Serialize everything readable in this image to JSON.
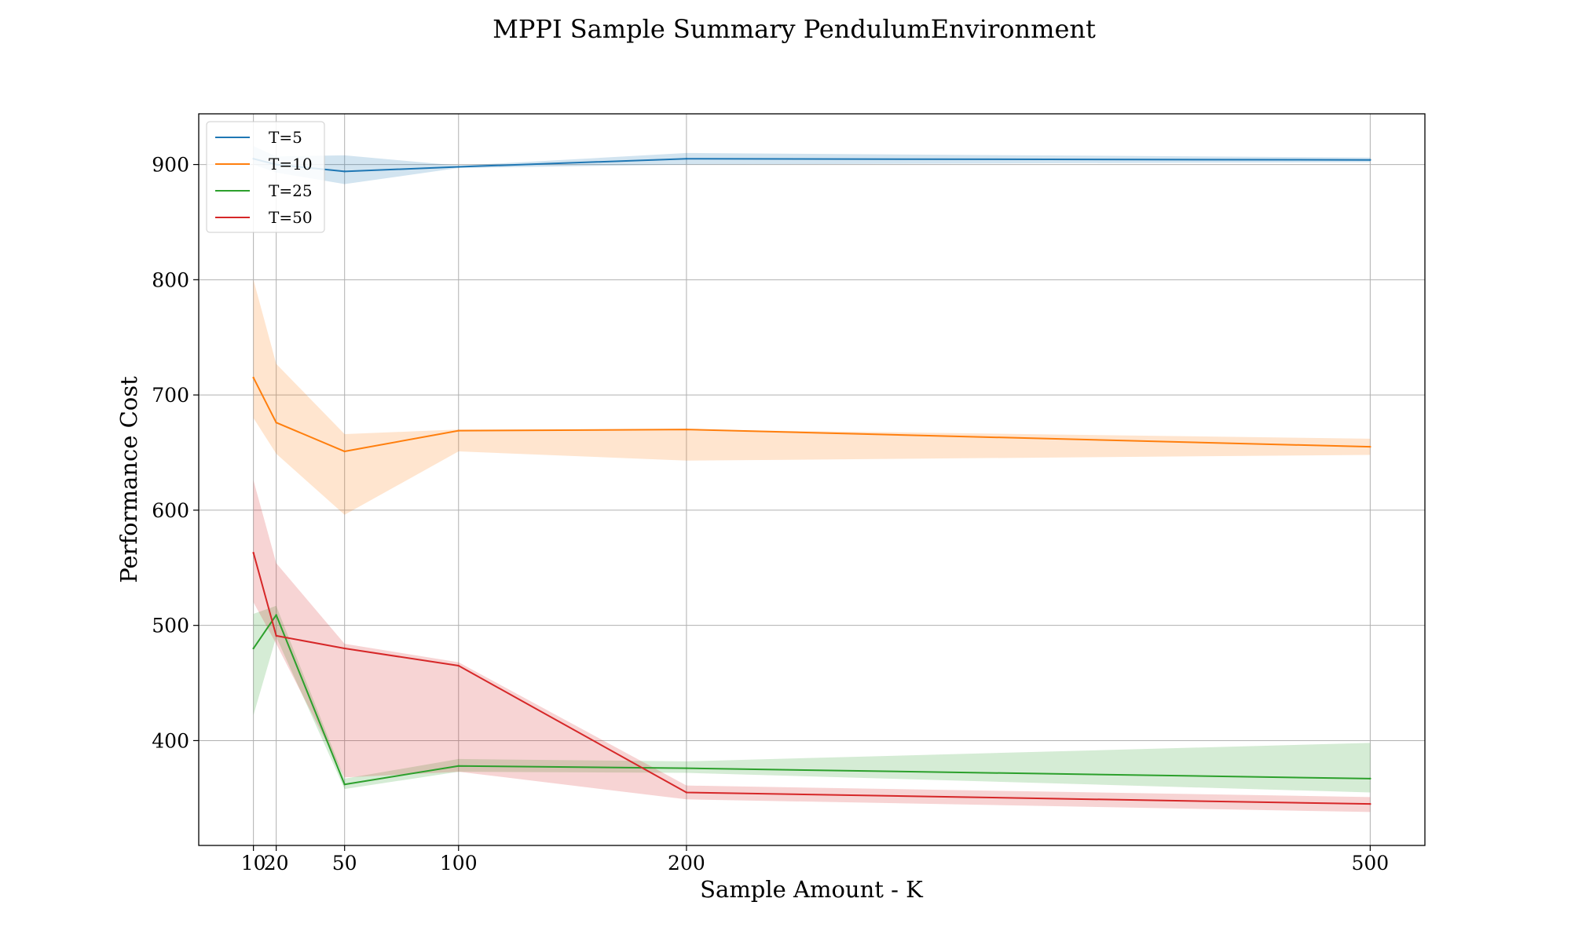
{
  "chart_data": {
    "type": "line",
    "title": "MPPI Sample Summary PendulumEnvironment",
    "xlabel": "Sample Amount - K",
    "ylabel": "Performance Cost",
    "x": [
      10,
      20,
      50,
      100,
      200,
      500
    ],
    "xticks": [
      "10",
      "20",
      "50",
      "100",
      "200",
      "500"
    ],
    "yticks": [
      "400",
      "500",
      "600",
      "700",
      "800",
      "900"
    ],
    "xlim": [
      -14,
      524
    ],
    "ylim": [
      309,
      944
    ],
    "grid": true,
    "legend_position": "top-left",
    "series": [
      {
        "name": "T=5",
        "color": "#1f77b4",
        "values": [
          905,
          900,
          894,
          898,
          905,
          904
        ],
        "lower": [
          900,
          893,
          883,
          897,
          900,
          902
        ],
        "upper": [
          916,
          907,
          908,
          899,
          910,
          906
        ]
      },
      {
        "name": "T=10",
        "color": "#ff7f0e",
        "values": [
          715,
          676,
          651,
          669,
          670,
          655
        ],
        "lower": [
          680,
          649,
          596,
          651,
          643,
          648
        ],
        "upper": [
          800,
          727,
          666,
          670,
          670,
          662
        ]
      },
      {
        "name": "T=25",
        "color": "#2ca02c",
        "values": [
          480,
          509,
          362,
          378,
          376,
          367
        ],
        "lower": [
          422,
          490,
          358,
          373,
          372,
          355
        ],
        "upper": [
          510,
          517,
          367,
          384,
          382,
          398
        ]
      },
      {
        "name": "T=50",
        "color": "#d62728",
        "values": [
          563,
          491,
          480,
          465,
          355,
          345
        ],
        "lower": [
          520,
          484,
          368,
          373,
          349,
          338
        ],
        "upper": [
          626,
          554,
          484,
          468,
          361,
          351
        ]
      }
    ]
  }
}
